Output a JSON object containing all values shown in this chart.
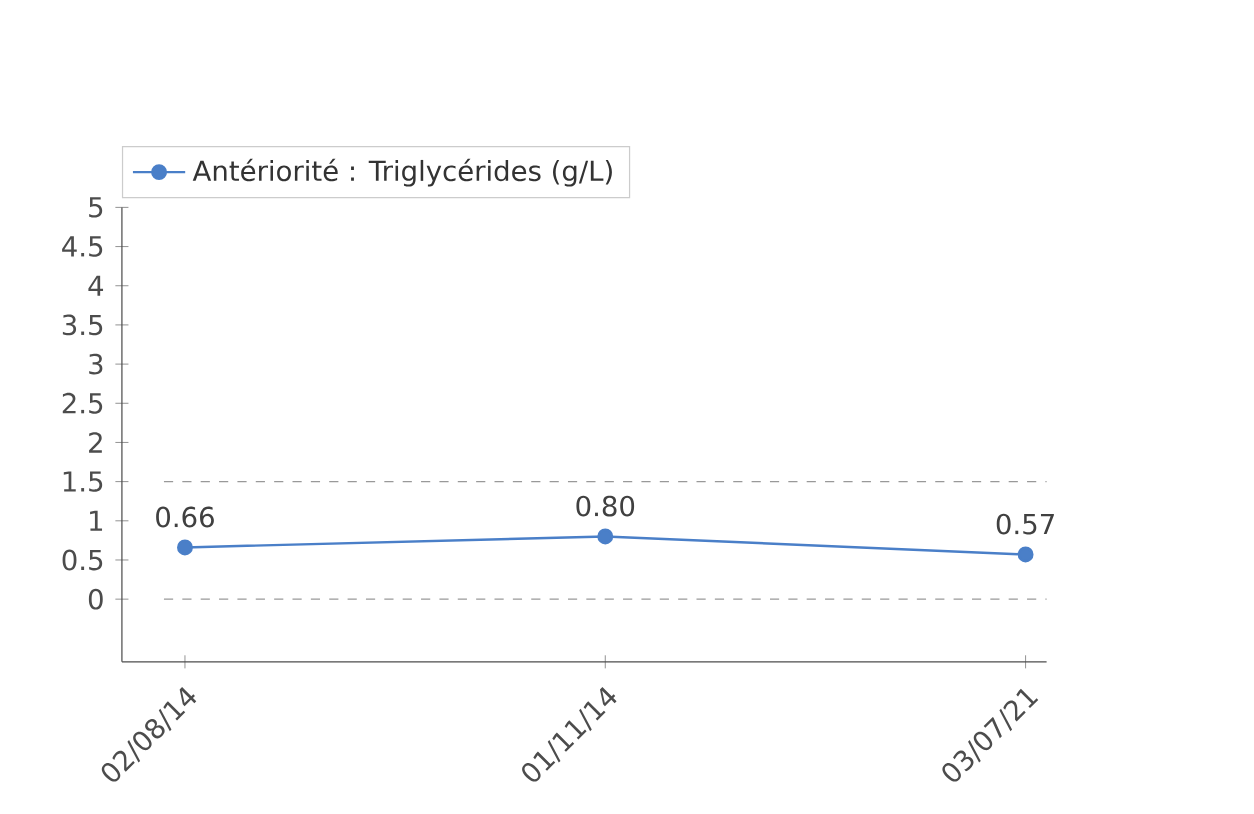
{
  "chart_data": {
    "type": "line",
    "categories": [
      "02/08/14",
      "01/11/14",
      "03/07/21"
    ],
    "series": [
      {
        "name": "Antériorité : Triglycérides (g/L)",
        "color": "#4a7fc8",
        "values": [
          0.66,
          0.8,
          0.57
        ],
        "value_labels": [
          "0.66",
          "0.80",
          "0.57"
        ]
      }
    ],
    "ylim": [
      -0.8,
      5
    ],
    "yticks": [
      0,
      0.5,
      1,
      1.5,
      2,
      2.5,
      3,
      3.5,
      4,
      4.5,
      5
    ],
    "ref_lines": [
      {
        "axis": "y",
        "value": 1.5,
        "color": "#999999",
        "line_style": "dashed"
      },
      {
        "axis": "y",
        "value": 0,
        "color": "#999999",
        "line_style": "dashed"
      }
    ],
    "legend": "top left",
    "marker": "circle",
    "line_style": "solid",
    "grid": false
  }
}
